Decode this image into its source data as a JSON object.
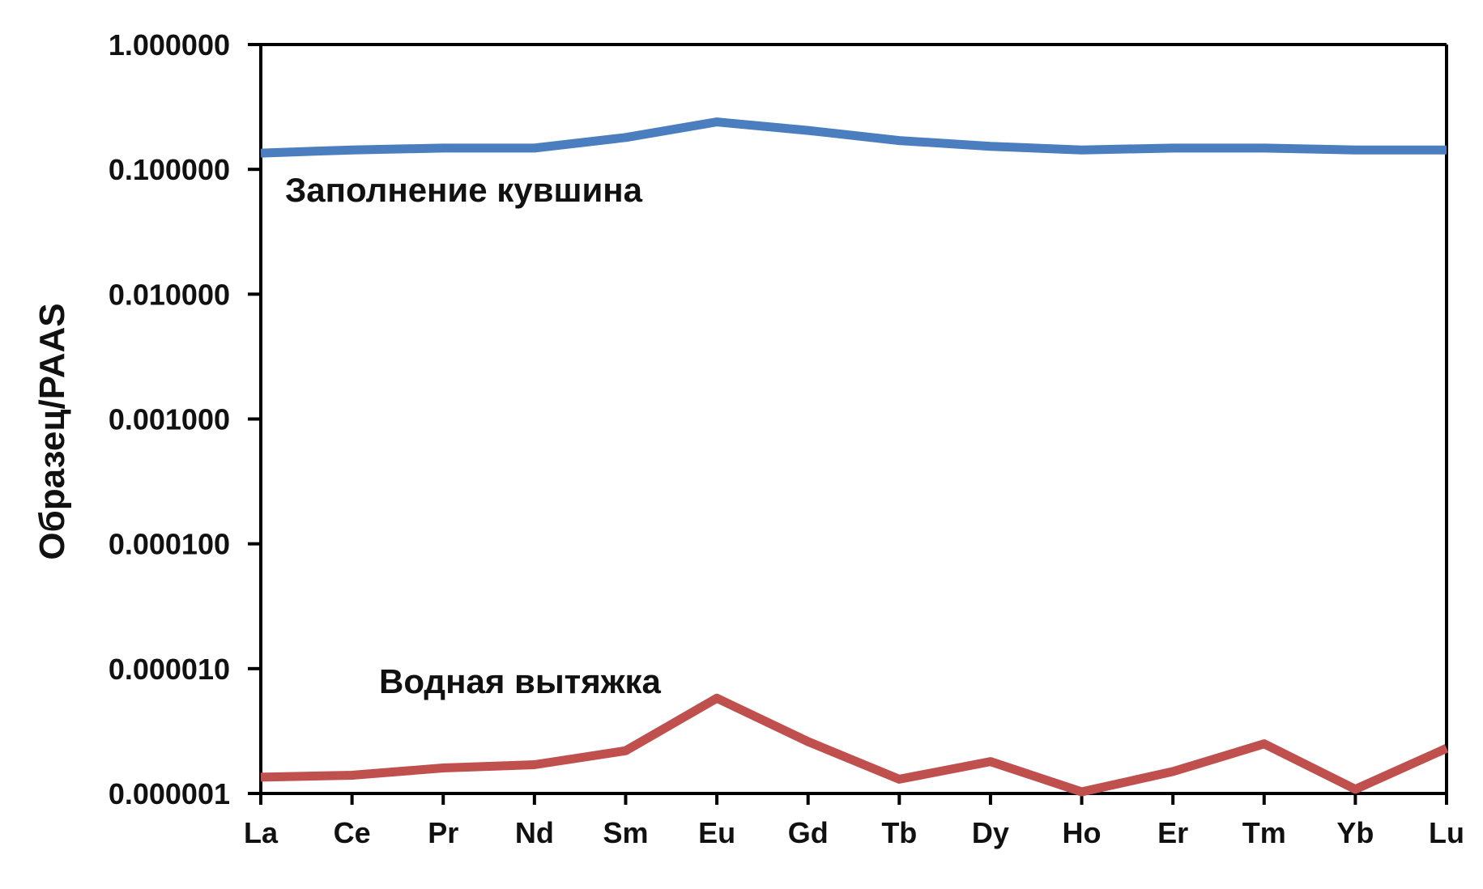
{
  "chart_data": {
    "type": "line",
    "title": "",
    "xlabel": "",
    "ylabel": "Образец/PAAS",
    "yscale": "log",
    "ylim": [
      1e-06,
      1
    ],
    "grid": false,
    "yticks": [
      "1.000000",
      "0.100000",
      "0.010000",
      "0.001000",
      "0.000100",
      "0.000010",
      "0.000001"
    ],
    "categories": [
      "La",
      "Ce",
      "Pr",
      "Nd",
      "Sm",
      "Eu",
      "Gd",
      "Tb",
      "Dy",
      "Ho",
      "Er",
      "Tm",
      "Yb",
      "Lu"
    ],
    "series": [
      {
        "name": "Заполнение кувшина",
        "color": "#4a7ebf",
        "values": [
          0.135,
          0.143,
          0.148,
          0.148,
          0.18,
          0.24,
          0.205,
          0.17,
          0.153,
          0.143,
          0.148,
          0.148,
          0.143,
          0.143
        ]
      },
      {
        "name": "Водная вытяжка",
        "color": "#c0504d",
        "values": [
          1.35e-06,
          1.4e-06,
          1.6e-06,
          1.7e-06,
          2.2e-06,
          5.8e-06,
          2.6e-06,
          1.3e-06,
          1.8e-06,
          1.03e-06,
          1.5e-06,
          2.5e-06,
          1.08e-06,
          2.3e-06
        ]
      }
    ]
  }
}
